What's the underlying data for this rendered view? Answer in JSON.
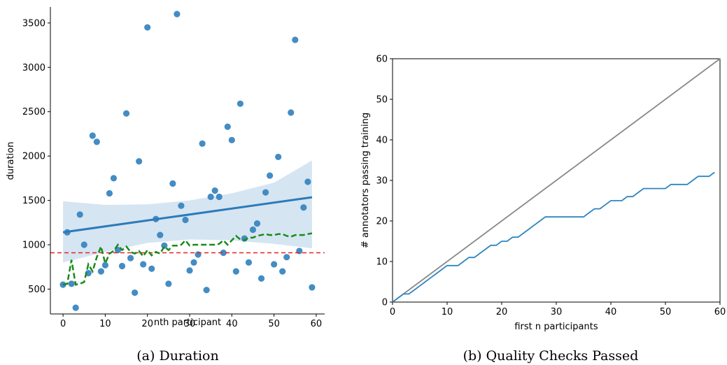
{
  "chart_data": [
    {
      "type": "scatter",
      "xlabel": "nth participant",
      "ylabel": "duration",
      "caption": "(a) Duration",
      "xlim": [
        -3,
        62
      ],
      "ylim": [
        220,
        3680
      ],
      "xticks": [
        0,
        10,
        20,
        30,
        40,
        50,
        60
      ],
      "yticks": [
        500,
        1000,
        1500,
        2000,
        2500,
        3000,
        3500
      ],
      "grid": false,
      "colors": {
        "points": "#3a86c0",
        "regression": "#2b7bba",
        "band": "#cfe0f0",
        "running": "#1a8a1a",
        "threshold": "#e82020"
      },
      "points": {
        "x": [
          0,
          1,
          2,
          3,
          4,
          5,
          6,
          7,
          8,
          9,
          10,
          11,
          12,
          13,
          14,
          15,
          16,
          17,
          18,
          19,
          20,
          21,
          22,
          23,
          24,
          25,
          26,
          27,
          28,
          29,
          30,
          31,
          32,
          33,
          34,
          35,
          36,
          37,
          38,
          39,
          40,
          41,
          42,
          43,
          44,
          45,
          46,
          47,
          48,
          49,
          50,
          51,
          52,
          53,
          54,
          55,
          56,
          57,
          58,
          59
        ],
        "y": [
          550,
          1140,
          560,
          290,
          1340,
          1000,
          680,
          2230,
          2160,
          700,
          770,
          1580,
          1750,
          940,
          760,
          2480,
          850,
          460,
          1940,
          780,
          3450,
          730,
          1290,
          1110,
          990,
          560,
          1690,
          3600,
          1440,
          1280,
          710,
          800,
          890,
          2140,
          490,
          1540,
          1610,
          1540,
          910,
          2330,
          2180,
          700,
          2590,
          1070,
          800,
          1170,
          1240,
          620,
          1590,
          1780,
          780,
          1990,
          700,
          860,
          2490,
          3310,
          930,
          1420,
          1710,
          520
        ]
      },
      "regression": {
        "x": [
          0,
          59
        ],
        "y": [
          1140,
          1535
        ]
      },
      "confidence_band": {
        "x": [
          0,
          10,
          20,
          30,
          40,
          50,
          59
        ],
        "upper": [
          1490,
          1450,
          1455,
          1500,
          1580,
          1700,
          1950
        ],
        "lower": [
          800,
          920,
          1020,
          1060,
          1050,
          1010,
          960
        ]
      },
      "running_median": {
        "x": [
          0,
          1,
          2,
          3,
          4,
          5,
          6,
          7,
          8,
          9,
          10,
          11,
          12,
          13,
          14,
          15,
          16,
          17,
          18,
          19,
          20,
          21,
          22,
          23,
          24,
          25,
          26,
          27,
          28,
          29,
          30,
          31,
          32,
          33,
          34,
          35,
          36,
          37,
          38,
          39,
          40,
          41,
          42,
          43,
          44,
          45,
          46,
          47,
          48,
          49,
          50,
          51,
          52,
          53,
          54,
          55,
          56,
          57,
          58,
          59
        ],
        "y": [
          550,
          560,
          830,
          550,
          560,
          580,
          780,
          700,
          860,
          980,
          790,
          900,
          930,
          1000,
          940,
          980,
          920,
          900,
          930,
          870,
          940,
          880,
          920,
          900,
          980,
          940,
          990,
          990,
          1000,
          1050,
          990,
          1000,
          1000,
          1000,
          1000,
          1000,
          1000,
          1010,
          1050,
          1000,
          1050,
          1100,
          1060,
          1050,
          1080,
          1080,
          1100,
          1110,
          1120,
          1110,
          1110,
          1120,
          1120,
          1100,
          1090,
          1110,
          1110,
          1110,
          1120,
          1130
        ]
      },
      "threshold": 910
    },
    {
      "type": "line",
      "xlabel": "first n participants",
      "ylabel": "# annotators passing training",
      "caption": "(b) Quality Checks Passed",
      "xlim": [
        0,
        60
      ],
      "ylim": [
        0,
        60
      ],
      "xticks": [
        0,
        10,
        20,
        30,
        40,
        50,
        60
      ],
      "yticks": [
        0,
        10,
        20,
        30,
        40,
        50,
        60
      ],
      "grid": false,
      "colors": {
        "reference": "#888888",
        "passing": "#2e86c1"
      },
      "reference": {
        "x": [
          0,
          60
        ],
        "y": [
          0,
          60
        ]
      },
      "passing": {
        "x": [
          0,
          1,
          2,
          3,
          4,
          5,
          6,
          7,
          8,
          9,
          10,
          11,
          12,
          13,
          14,
          15,
          16,
          17,
          18,
          19,
          20,
          21,
          22,
          23,
          24,
          25,
          26,
          27,
          28,
          29,
          30,
          31,
          32,
          33,
          34,
          35,
          36,
          37,
          38,
          39,
          40,
          41,
          42,
          43,
          44,
          45,
          46,
          47,
          48,
          49,
          50,
          51,
          52,
          53,
          54,
          55,
          56,
          57,
          58,
          59
        ],
        "y": [
          0,
          1,
          2,
          2,
          3,
          4,
          5,
          6,
          7,
          8,
          9,
          9,
          9,
          10,
          11,
          11,
          12,
          13,
          14,
          14,
          15,
          15,
          16,
          16,
          17,
          18,
          19,
          20,
          21,
          21,
          21,
          21,
          21,
          21,
          21,
          21,
          22,
          23,
          23,
          24,
          25,
          25,
          25,
          26,
          26,
          27,
          28,
          28,
          28,
          28,
          28,
          29,
          29,
          29,
          29,
          30,
          31,
          31,
          31,
          32
        ]
      }
    }
  ]
}
